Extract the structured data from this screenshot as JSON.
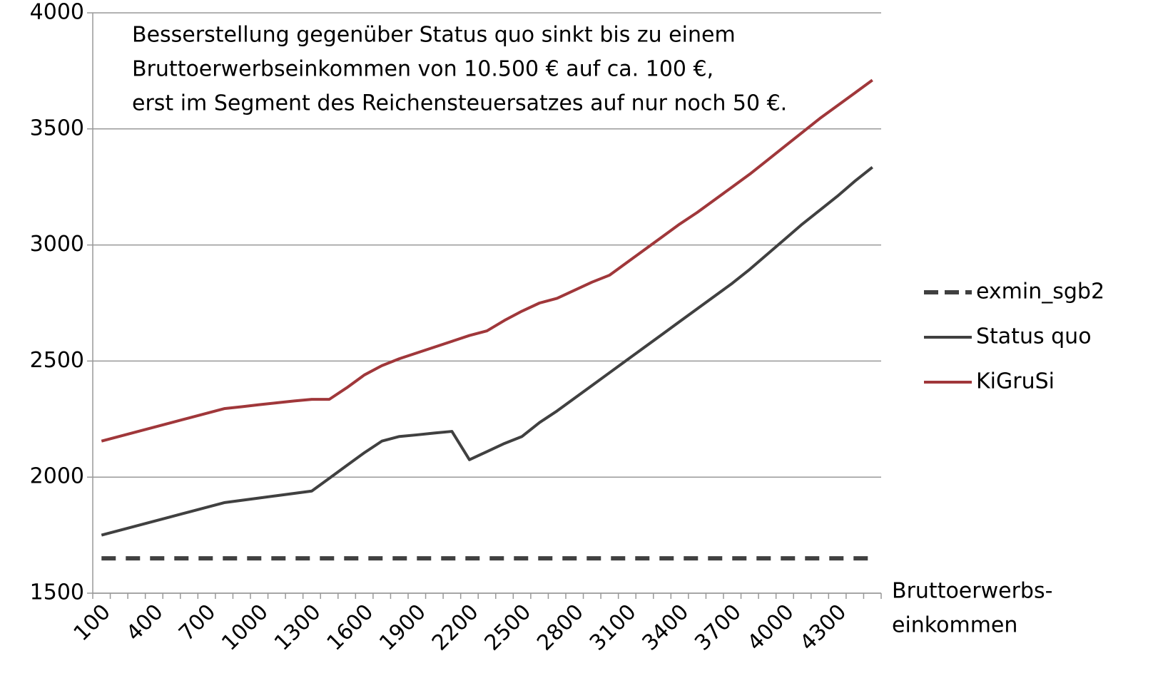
{
  "chart_data": {
    "type": "line",
    "annotation": [
      "Besserstellung gegenüber Status quo sinkt bis zu einem",
      "Bruttoerwerbseinkommen von 10.500 € auf ca. 100 €,",
      "erst im Segment des Reichensteuersatzes auf nur noch 50 €."
    ],
    "x_label": [
      "Bruttoerwerbs-",
      "einkommen"
    ],
    "categories": [
      "100",
      null,
      null,
      "400",
      null,
      null,
      "700",
      null,
      null,
      "1000",
      null,
      null,
      "1300",
      null,
      null,
      "1600",
      null,
      null,
      "1900",
      null,
      null,
      "2200",
      null,
      null,
      "2500",
      null,
      null,
      "2800",
      null,
      null,
      "3100",
      null,
      null,
      "3400",
      null,
      null,
      "3700",
      null,
      null,
      "4000",
      null,
      null,
      "4300",
      null,
      null
    ],
    "series": [
      {
        "name": "exmin_sgb2",
        "color": "#404040",
        "dashed": true,
        "values": [
          1650,
          1650,
          1650,
          1650,
          1650,
          1650,
          1650,
          1650,
          1650,
          1650,
          1650,
          1650,
          1650,
          1650,
          1650,
          1650,
          1650,
          1650,
          1650,
          1650,
          1650,
          1650,
          1650,
          1650,
          1650,
          1650,
          1650,
          1650,
          1650,
          1650,
          1650,
          1650,
          1650,
          1650,
          1650,
          1650,
          1650,
          1650,
          1650,
          1650,
          1650,
          1650,
          1650,
          1650,
          1650
        ]
      },
      {
        "name": "Status quo",
        "color": "#404040",
        "dashed": false,
        "values": [
          1750,
          1770,
          1790,
          1810,
          1830,
          1850,
          1870,
          1890,
          1900,
          1910,
          1920,
          1930,
          1940,
          1995,
          2050,
          2105,
          2155,
          2175,
          2182,
          2190,
          2197,
          2075,
          2110,
          2145,
          2175,
          2235,
          2285,
          2340,
          2395,
          2450,
          2505,
          2560,
          2615,
          2670,
          2725,
          2780,
          2835,
          2895,
          2960,
          3025,
          3090,
          3150,
          3210,
          3275,
          3335
        ]
      },
      {
        "name": "KiGruSi",
        "color": "#a0373a",
        "dashed": false,
        "values": [
          2155,
          2175,
          2195,
          2215,
          2235,
          2255,
          2275,
          2295,
          2303,
          2312,
          2320,
          2328,
          2335,
          2335,
          2385,
          2440,
          2480,
          2510,
          2535,
          2560,
          2585,
          2610,
          2630,
          2675,
          2715,
          2750,
          2770,
          2805,
          2840,
          2870,
          2925,
          2980,
          3035,
          3090,
          3140,
          3195,
          3250,
          3305,
          3365,
          3425,
          3485,
          3545,
          3600,
          3655,
          3710
        ]
      }
    ],
    "ylim": [
      1500,
      4000
    ],
    "yticks": [
      1500,
      2000,
      2500,
      3000,
      3500,
      4000
    ],
    "grid": true,
    "legend": "right"
  }
}
